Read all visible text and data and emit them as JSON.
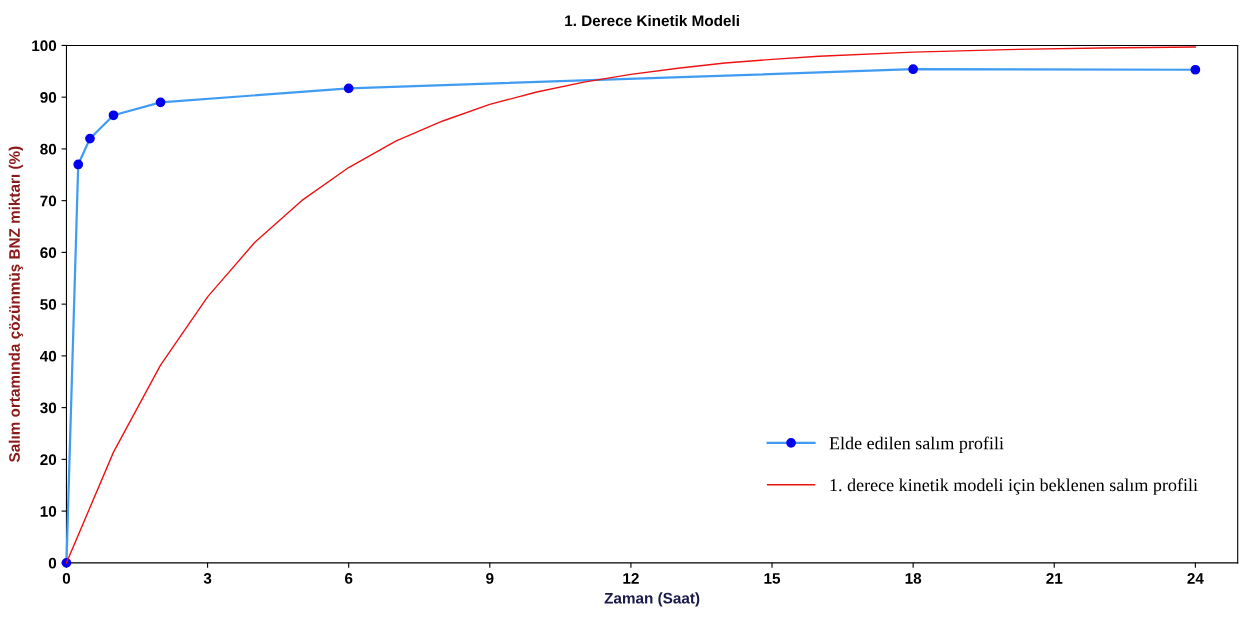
{
  "chart_data": {
    "type": "line",
    "title": "1. Derece Kinetik Modeli",
    "xlabel": "Zaman (Saat)",
    "ylabel": "Salım ortamında çözünmüş BNZ miktarı (%)",
    "xlim": [
      0,
      24.9
    ],
    "xticks": [
      0,
      3,
      6,
      9,
      12,
      15,
      18,
      21,
      24
    ],
    "ylim": [
      0,
      100
    ],
    "yticks": [
      0,
      10,
      20,
      30,
      40,
      50,
      60,
      70,
      80,
      90,
      100
    ],
    "grid": false,
    "legend": "bottom right",
    "series": [
      {
        "name": "Elde edilen salım profili",
        "color": "#3f9cf2",
        "marker": "circle",
        "x": [
          0,
          0.25,
          0.5,
          1,
          2,
          6,
          18,
          24
        ],
        "values": [
          0,
          77,
          82,
          86.5,
          89,
          91.7,
          95.4,
          95.3
        ]
      },
      {
        "name": "1. derece kinetik modeli için beklenen salım profili",
        "color": "#ee1111",
        "marker": "none",
        "x": [
          0,
          1,
          2,
          3,
          4,
          5,
          6,
          7,
          8,
          9,
          10,
          11,
          12,
          13,
          14,
          15,
          16,
          18,
          20,
          22,
          24
        ],
        "values": [
          0,
          21.4,
          38.2,
          51.4,
          61.9,
          70,
          76.4,
          81.5,
          85.4,
          88.6,
          91,
          92.9,
          94.4,
          95.6,
          96.6,
          97.3,
          97.9,
          98.7,
          99.2,
          99.5,
          99.7
        ]
      }
    ]
  }
}
